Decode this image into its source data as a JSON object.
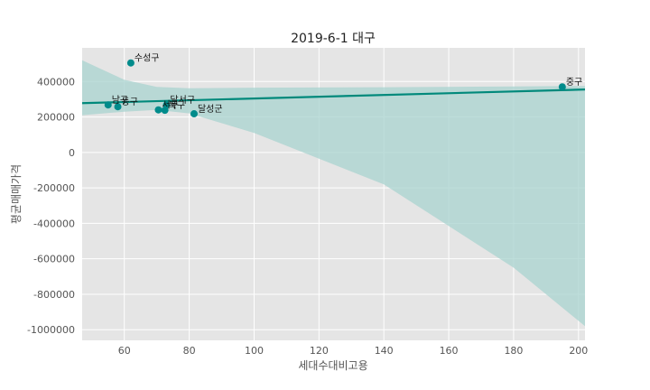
{
  "chart_data": {
    "type": "scatter",
    "title": "2019-6-1 대구",
    "xlabel": "세대수대비고용",
    "ylabel": "평균매매가격",
    "xlim": [
      47,
      202
    ],
    "ylim": [
      -1060000,
      590000
    ],
    "xticks": [
      60,
      80,
      100,
      120,
      140,
      160,
      180,
      200
    ],
    "yticks": [
      400000,
      200000,
      0,
      -200000,
      -400000,
      -600000,
      -800000,
      -1000000
    ],
    "xtick_labels": [
      "60",
      "80",
      "100",
      "120",
      "140",
      "160",
      "180",
      "200"
    ],
    "ytick_labels": [
      "400000",
      "200000",
      "0",
      "-200000",
      "-400000",
      "-600000",
      "-800000",
      "-1000000"
    ],
    "grid": true,
    "points": [
      {
        "label": "수성구",
        "x": 62,
        "y": 505000
      },
      {
        "label": "중구",
        "x": 195,
        "y": 370000
      },
      {
        "label": "남구",
        "x": 55,
        "y": 268000
      },
      {
        "label": "동구",
        "x": 58,
        "y": 258000
      },
      {
        "label": "달서구",
        "x": 73,
        "y": 268000
      },
      {
        "label": "서구",
        "x": 70.5,
        "y": 240000
      },
      {
        "label": "북구",
        "x": 72.5,
        "y": 238000
      },
      {
        "label": "달성군",
        "x": 81.5,
        "y": 218000
      }
    ],
    "regression": {
      "line": [
        {
          "x": 47,
          "y": 278000
        },
        {
          "x": 202,
          "y": 355000
        }
      ],
      "band_upper": [
        {
          "x": 47,
          "y": 520000
        },
        {
          "x": 60,
          "y": 410000
        },
        {
          "x": 70,
          "y": 370000
        },
        {
          "x": 80,
          "y": 362000
        },
        {
          "x": 100,
          "y": 365000
        },
        {
          "x": 140,
          "y": 368000
        },
        {
          "x": 180,
          "y": 372000
        },
        {
          "x": 202,
          "y": 375000
        }
      ],
      "band_lower": [
        {
          "x": 47,
          "y": 210000
        },
        {
          "x": 60,
          "y": 230000
        },
        {
          "x": 70,
          "y": 240000
        },
        {
          "x": 80,
          "y": 220000
        },
        {
          "x": 100,
          "y": 110000
        },
        {
          "x": 140,
          "y": -180000
        },
        {
          "x": 180,
          "y": -650000
        },
        {
          "x": 202,
          "y": -980000
        }
      ]
    },
    "colors": {
      "point": "#008b8b",
      "line": "#00897b",
      "band": "#a8d3cf",
      "plot_bg": "#e5e5e5",
      "grid": "#ffffff"
    }
  }
}
